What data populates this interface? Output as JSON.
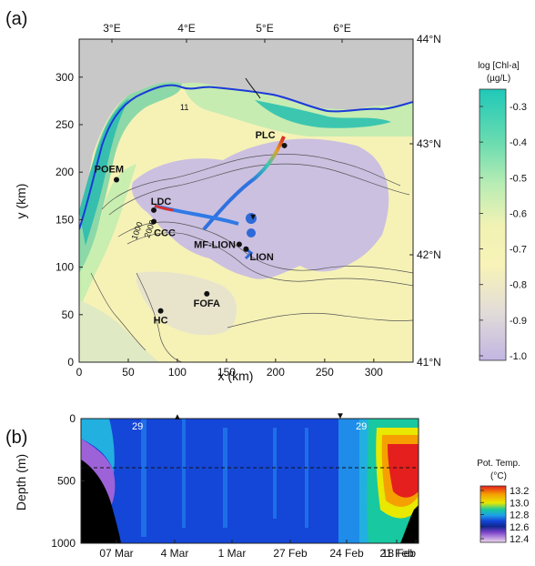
{
  "chart_data": [
    {
      "panel_label": "(a)",
      "type": "heatmap",
      "xlabel": "x (km)",
      "ylabel": "y (km)",
      "xlim": [
        0,
        340
      ],
      "ylim": [
        0,
        340
      ],
      "x_ticks": [
        "0",
        "50",
        "100",
        "150",
        "200",
        "250",
        "300"
      ],
      "y_ticks": [
        "0",
        "50",
        "100",
        "150",
        "200",
        "250",
        "300"
      ],
      "lon_ticks": [
        "3°E",
        "4°E",
        "5°E",
        "6°E"
      ],
      "lat_ticks": [
        "44°N",
        "43°N",
        "42°N",
        "41°N"
      ],
      "colorbar": {
        "title_line1": "log [Chl-a]",
        "title_line2": "(µg/L)",
        "ticks": [
          "-0.3",
          "-0.4",
          "-0.5",
          "-0.6",
          "-0.7",
          "-0.8",
          "-0.9",
          "-1.0"
        ]
      },
      "contour_labels": [
        "11",
        "1000",
        "2000"
      ],
      "stations": [
        {
          "name": "PLC",
          "x": 209,
          "y": 228
        },
        {
          "name": "POEM",
          "x": 38,
          "y": 192
        },
        {
          "name": "LDC",
          "x": 76,
          "y": 160
        },
        {
          "name": "CCC",
          "x": 76,
          "y": 148
        },
        {
          "name": "MF-LION",
          "x": 163,
          "y": 124
        },
        {
          "name": "LION",
          "x": 170,
          "y": 119
        },
        {
          "name": "FOFA",
          "x": 130,
          "y": 72
        },
        {
          "name": "HC",
          "x": 83,
          "y": 54
        }
      ],
      "markers": [
        {
          "symbol": "▼",
          "x": 177,
          "y": 150
        }
      ]
    },
    {
      "panel_label": "(b)",
      "type": "heatmap",
      "ylabel": "Depth (m)",
      "y_ticks": [
        "0",
        "500",
        "1000"
      ],
      "x_ticks": [
        "07 Mar",
        "4 Mar",
        "1 Mar",
        "27 Feb",
        "24 Feb",
        "21 Feb",
        "18 Feb"
      ],
      "annotations": [
        "29",
        "29"
      ],
      "markers": [
        "▲",
        "▼"
      ],
      "colorbar": {
        "title_line1": "Pot. Temp.",
        "title_line2": "(°C)",
        "ticks": [
          "13.2",
          "13.0",
          "12.8",
          "12.6",
          "12.4"
        ]
      }
    }
  ]
}
